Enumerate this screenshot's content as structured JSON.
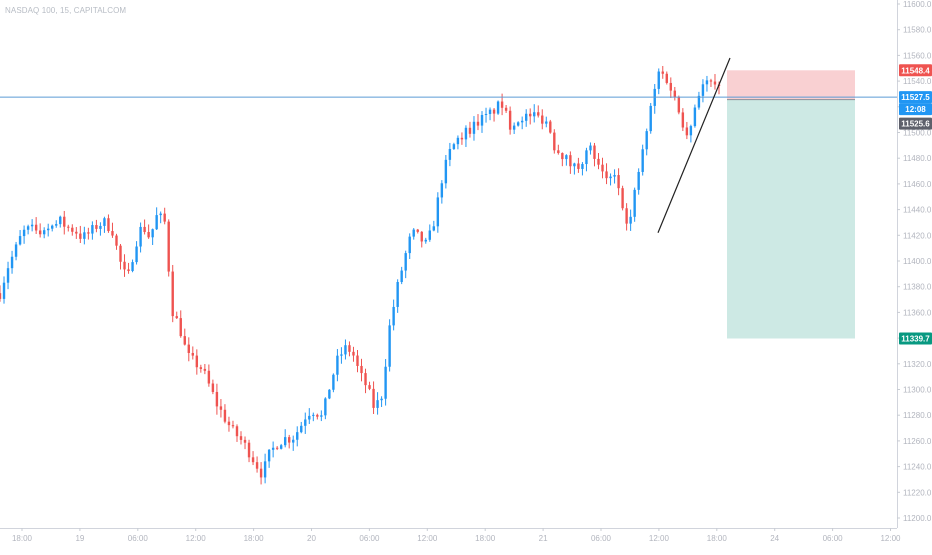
{
  "header": {
    "symbol_title": "NASDAQ 100, 15, CAPITALCOM"
  },
  "colors": {
    "up": "#2196f3",
    "down": "#ef5350",
    "hline": "#5b9bd5",
    "stop_zone": "#f9d0d2",
    "target_zone": "#cde9e4",
    "trendline": "#222222",
    "grid_text": "#b2b5be"
  },
  "chart_data": {
    "type": "candlestick",
    "title": "NASDAQ 100, 15, CAPITALCOM",
    "timeframe": "15",
    "ylim": [
      11200,
      11620
    ],
    "y_ticks": [
      11600.0,
      11580.0,
      11560.0,
      11540.0,
      11520.0,
      11500.0,
      11480.0,
      11460.0,
      11440.0,
      11420.0,
      11400.0,
      11380.0,
      11360.0,
      11340.0,
      11320.0,
      11300.0,
      11280.0,
      11260.0,
      11240.0,
      11220.0,
      11200.0
    ],
    "x_ticks": [
      "18:00",
      "19",
      "06:00",
      "12:00",
      "18:00",
      "20",
      "06:00",
      "12:00",
      "18:00",
      "21",
      "06:00",
      "12:00",
      "18:00",
      "24",
      "06:00",
      "12:00"
    ],
    "close_path": [
      11375,
      11395,
      11408,
      11422,
      11425,
      11419,
      11428,
      11424,
      11431,
      11426,
      11424,
      11418,
      11422,
      11428,
      11430,
      11424,
      11400,
      11384,
      11412,
      11428,
      11418,
      11436,
      11430,
      11362,
      11348,
      11326,
      11321,
      11316,
      11302,
      11288,
      11278,
      11268,
      11262,
      11254,
      11244,
      11234,
      11250,
      11258,
      11262,
      11262,
      11270,
      11282,
      11284,
      11278,
      11302,
      11322,
      11332,
      11330,
      11312,
      11302,
      11285,
      11296,
      11348,
      11378,
      11402,
      11422,
      11418,
      11412,
      11432,
      11464,
      11484,
      11494,
      11500,
      11504,
      11510,
      11512,
      11518,
      11522,
      11506,
      11510,
      11512,
      11514,
      11512,
      11509,
      11490,
      11484,
      11476,
      11472,
      11482,
      11488,
      11470,
      11462,
      11470,
      11448,
      11426,
      11462,
      11490,
      11522,
      11548,
      11542,
      11528,
      11510,
      11498,
      11528,
      11538,
      11538,
      11532
    ],
    "trade_setup": {
      "position": "short",
      "entry_price": 11525.6,
      "stop_price": 11548.4,
      "target_price": 11339.7
    },
    "horizontal_line": 11527.5,
    "price_labels": {
      "stop": "11548.4",
      "current": "11527.5",
      "countdown": "12:08",
      "entry": "11525.6",
      "target": "11339.7"
    },
    "trendline": {
      "from_price": 11422,
      "to_price": 11558
    }
  }
}
